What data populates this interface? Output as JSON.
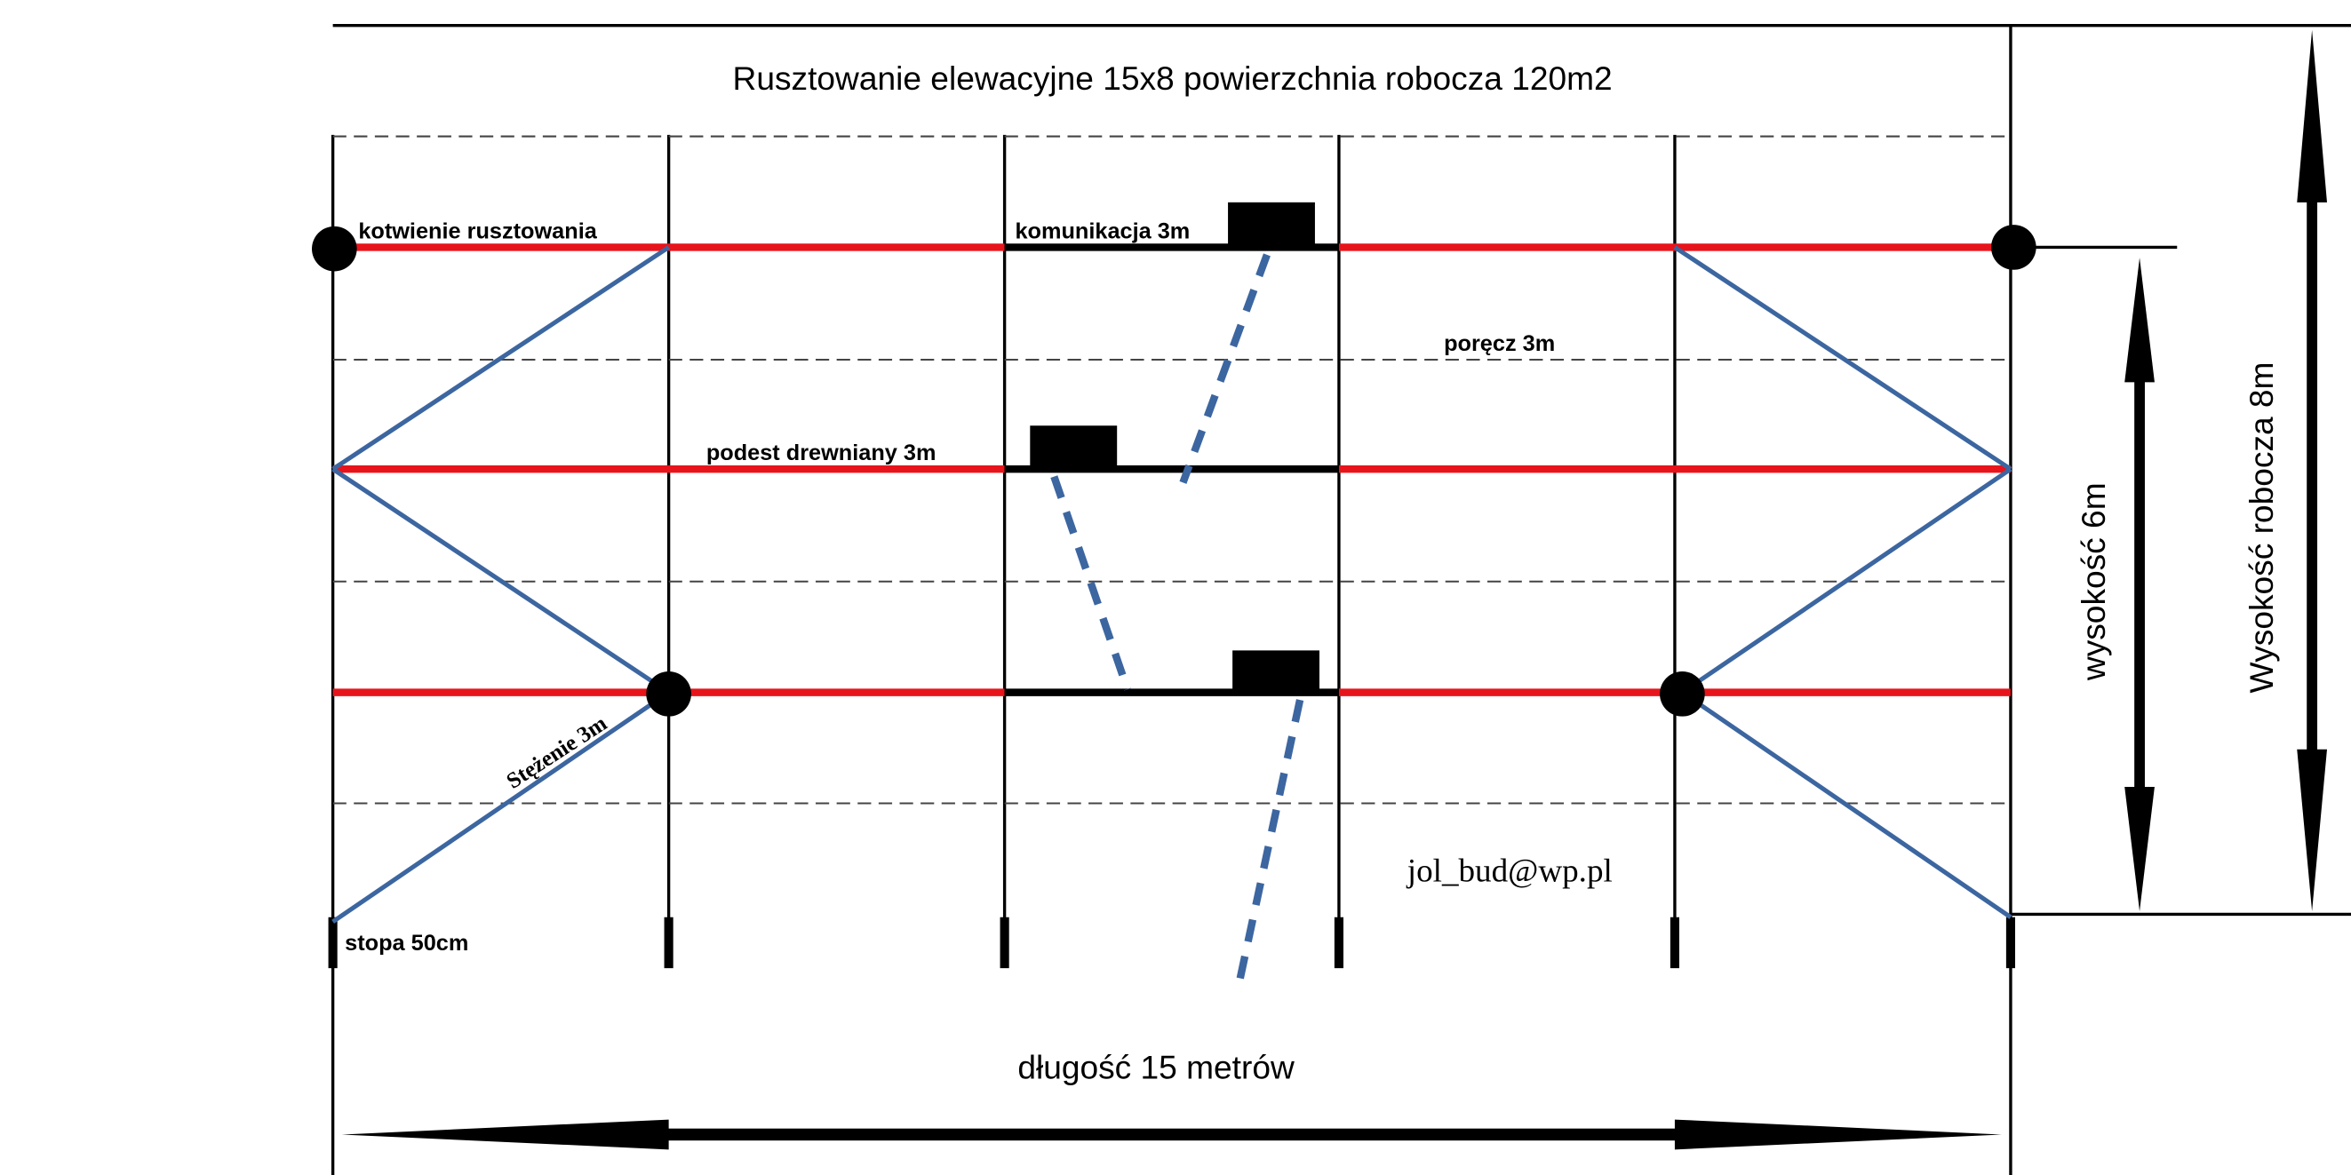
{
  "title": "Rusztowanie elewacyjne 15x8 powierzchnia robocza 120m2",
  "labels": {
    "anchoring": "kotwienie rusztowania",
    "communication": "komunikacja 3m",
    "railing": "poręcz 3m",
    "platform": "podest drewniany 3m",
    "bracing": "Stężenie 3m",
    "foot": "stopa 50cm",
    "contact": "jol_bud@wp.pl",
    "length": "długość 15 metrów",
    "height": "wysokość 6m",
    "working_height": "Wysokość robocza 8m"
  }
}
